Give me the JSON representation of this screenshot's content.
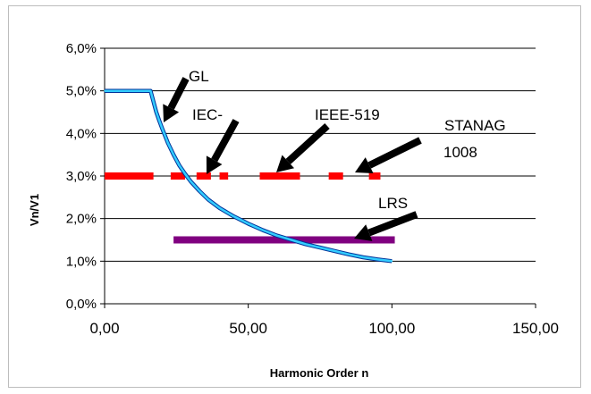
{
  "chart_data": {
    "type": "line",
    "title": "",
    "xlabel": "Harmonic Order n",
    "ylabel": "Vn/V1",
    "xlim": [
      0,
      150
    ],
    "ylim": [
      0,
      6
    ],
    "x_ticks": [
      "0,00",
      "50,00",
      "100,00",
      "150,00"
    ],
    "y_ticks": [
      "0,0%",
      "1,0%",
      "2,0%",
      "3,0%",
      "4,0%",
      "5,0%",
      "6,0%"
    ],
    "grid": "horizontal",
    "series": [
      {
        "name": "GL",
        "color": "#33ccff",
        "x": [
          0,
          16,
          17,
          18,
          19,
          20,
          21,
          22,
          24,
          26,
          28,
          30,
          33,
          36,
          40,
          45,
          50,
          55,
          60,
          65,
          70,
          75,
          80,
          85,
          90,
          95,
          100
        ],
        "y": [
          5.0,
          5.0,
          4.75,
          4.5,
          4.3,
          4.12,
          3.95,
          3.78,
          3.5,
          3.25,
          3.05,
          2.87,
          2.65,
          2.45,
          2.25,
          2.05,
          1.88,
          1.73,
          1.6,
          1.5,
          1.4,
          1.32,
          1.24,
          1.16,
          1.09,
          1.04,
          1.0
        ]
      },
      {
        "name": "IEC-",
        "color": "#ff0000",
        "x": [
          0,
          17,
          23,
          28,
          32,
          37,
          40,
          43,
          54,
          68
        ],
        "y": [
          3.0,
          3.0,
          3.0,
          3.0,
          3.0,
          3.0,
          3.0,
          3.0,
          3.0,
          3.0
        ]
      },
      {
        "name": "IEEE-519",
        "color": "#ff0000",
        "x": [
          54,
          68,
          78,
          83,
          92,
          96
        ],
        "y": [
          3.0,
          3.0,
          3.0,
          3.0,
          3.0,
          3.0
        ]
      },
      {
        "name": "LRS",
        "color": "#800080",
        "x": [
          24,
          101
        ],
        "y": [
          1.5,
          1.5
        ]
      }
    ],
    "annotations": [
      {
        "text": "GL"
      },
      {
        "text": "IEC-"
      },
      {
        "text": "IEEE-519"
      },
      {
        "text": "STANAG"
      },
      {
        "text": "1008"
      },
      {
        "text": "LRS"
      }
    ]
  }
}
